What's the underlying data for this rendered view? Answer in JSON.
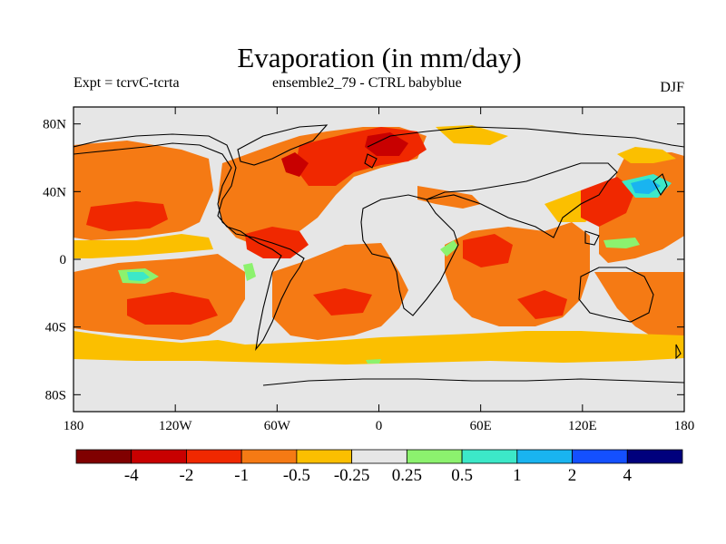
{
  "title": "Evaporation (in mm/day)",
  "subtitle_left": "Expt = tcrvC-tcrta",
  "subtitle_center": "ensemble2_79 - CTRL babyblue",
  "season": "DJF",
  "axes": {
    "lat_ticks": [
      {
        "value": 80,
        "label": "80N"
      },
      {
        "value": 40,
        "label": "40N"
      },
      {
        "value": 0,
        "label": "0"
      },
      {
        "value": -40,
        "label": "40S"
      },
      {
        "value": -80,
        "label": "80S"
      }
    ],
    "lon_ticks": [
      {
        "value": -180,
        "label": "180"
      },
      {
        "value": -120,
        "label": "120W"
      },
      {
        "value": -60,
        "label": "60W"
      },
      {
        "value": 0,
        "label": "0"
      },
      {
        "value": 60,
        "label": "60E"
      },
      {
        "value": 120,
        "label": "120E"
      },
      {
        "value": 180,
        "label": "180"
      }
    ],
    "lon_range": [
      -180,
      180
    ],
    "lat_range": [
      -90,
      90
    ]
  },
  "colorbar": {
    "colors": [
      "#800000",
      "#c80000",
      "#f02800",
      "#f57a14",
      "#fbbf00",
      "#e6e6e6",
      "#8cf26e",
      "#3ce8c8",
      "#19b4f0",
      "#1450ff",
      "#00007d"
    ],
    "labels": [
      "-4",
      "-2",
      "-1",
      "-0.5",
      "-0.25",
      "0.25",
      "0.5",
      "1",
      "2",
      "4"
    ]
  }
}
